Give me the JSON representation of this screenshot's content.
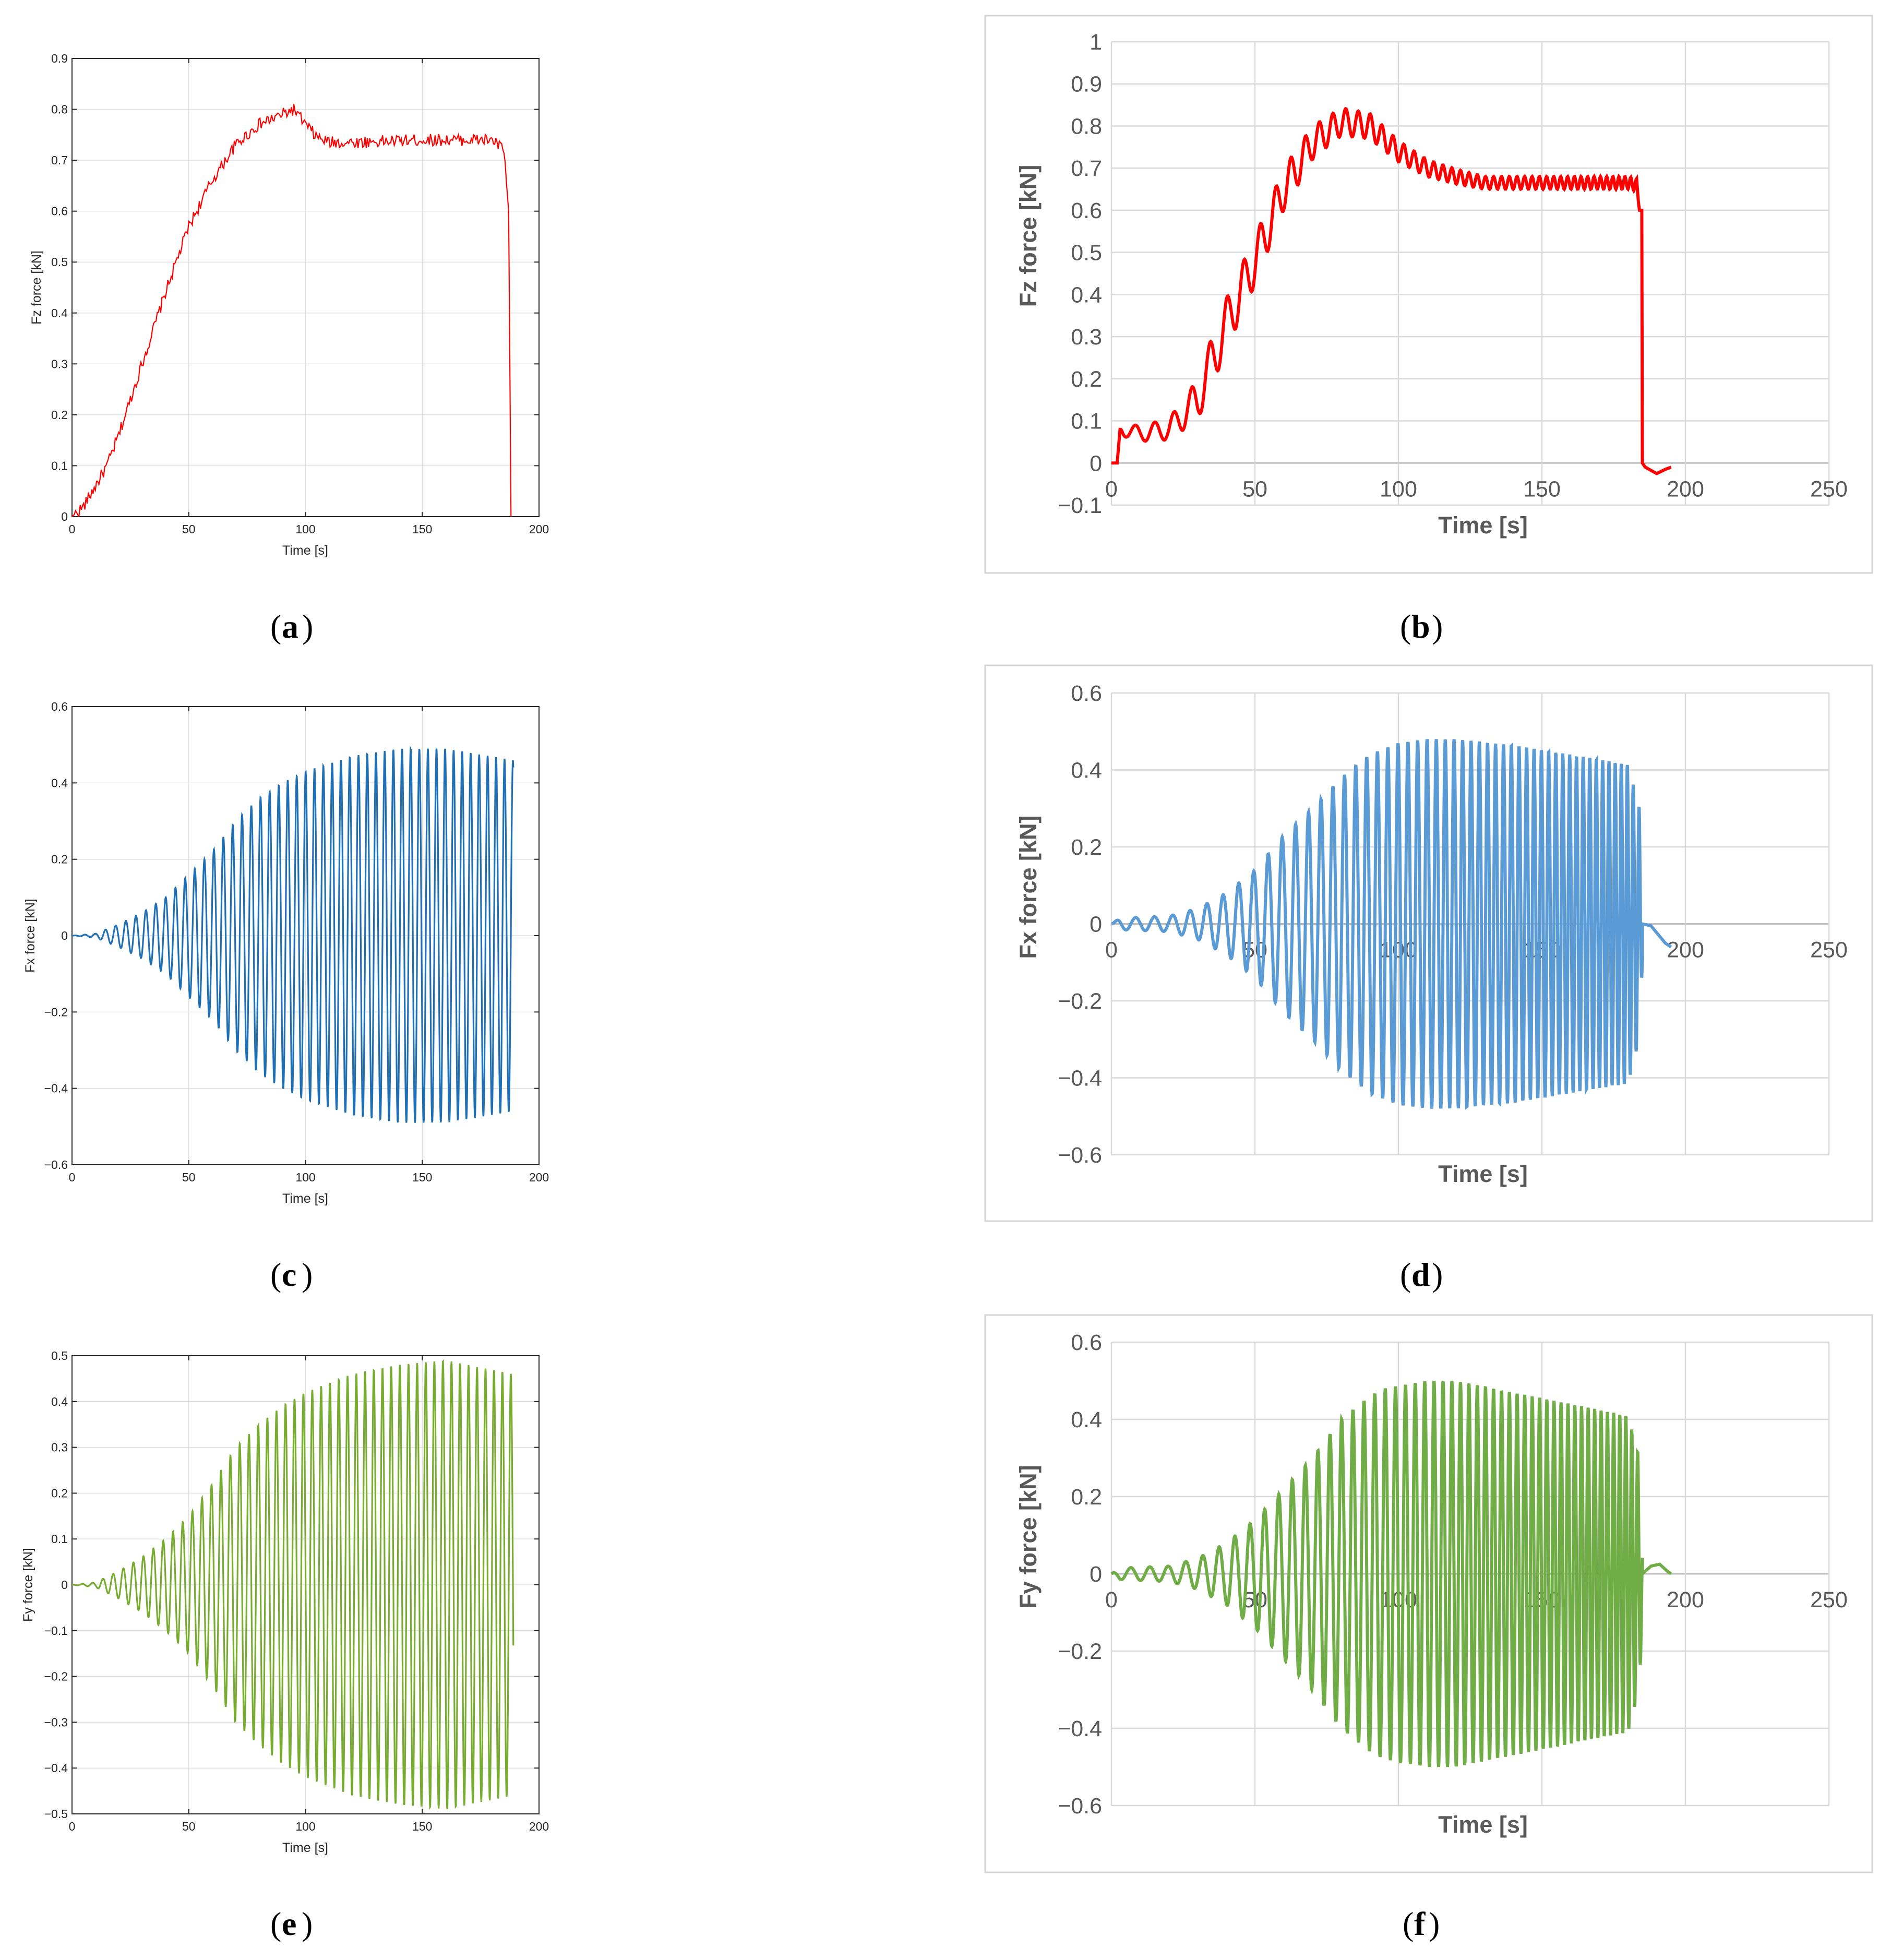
{
  "figure": {
    "colors": {
      "red": "#ff0000",
      "blue": "#1f6fb4",
      "green": "#77ac30",
      "lightblue": "#5b9bd5",
      "lightgreen": "#70ad47"
    },
    "panels": [
      {
        "letter": "a"
      },
      {
        "letter": "b"
      },
      {
        "letter": "c"
      },
      {
        "letter": "d"
      },
      {
        "letter": "e"
      },
      {
        "letter": "f"
      }
    ]
  },
  "chart_data": [
    {
      "id": "a",
      "type": "line",
      "style": "matlab",
      "color": "#ff0000",
      "xlabel": "Time [s]",
      "ylabel": "Fz force [kN]",
      "xlim": [
        0,
        200
      ],
      "ylim": [
        0,
        0.9
      ],
      "xticks": [
        0,
        50,
        100,
        150,
        200
      ],
      "xticklabels": [
        "0",
        "50",
        "100",
        "150",
        "200"
      ],
      "yticks": [
        0,
        0.1,
        0.2,
        0.3,
        0.4,
        0.5,
        0.6,
        0.7,
        0.8,
        0.9
      ],
      "yticklabels": [
        "0",
        "0.1",
        "0.2",
        "0.3",
        "0.4",
        "0.5",
        "0.6",
        "0.7",
        "0.8",
        "0.9"
      ],
      "signal": {
        "kind": "envelope",
        "sample_step": 0.5,
        "noise_amplitude": 0.012,
        "envelope": [
          [
            0,
            0
          ],
          [
            5,
            0.02
          ],
          [
            10,
            0.06
          ],
          [
            15,
            0.1
          ],
          [
            20,
            0.16
          ],
          [
            30,
            0.3
          ],
          [
            40,
            0.44
          ],
          [
            50,
            0.57
          ],
          [
            60,
            0.66
          ],
          [
            70,
            0.73
          ],
          [
            80,
            0.77
          ],
          [
            90,
            0.79
          ],
          [
            95,
            0.8
          ],
          [
            100,
            0.77
          ],
          [
            105,
            0.745
          ],
          [
            110,
            0.735
          ],
          [
            120,
            0.735
          ],
          [
            150,
            0.74
          ],
          [
            180,
            0.74
          ],
          [
            185,
            0.72
          ],
          [
            187,
            0.6
          ],
          [
            188,
            0
          ]
        ]
      }
    },
    {
      "id": "b",
      "type": "line",
      "style": "excel",
      "color": "#ff0000",
      "xlabel": "Time [s]",
      "ylabel": "Fz force [kN]",
      "xlim": [
        0,
        250
      ],
      "ylim": [
        -0.1,
        1
      ],
      "xticks": [
        0,
        50,
        100,
        150,
        200,
        250
      ],
      "xticklabels": [
        "0",
        "50",
        "100",
        "150",
        "200",
        "250"
      ],
      "yticks": [
        -0.1,
        0,
        0.1,
        0.2,
        0.3,
        0.4,
        0.5,
        0.6,
        0.7,
        0.8,
        0.9,
        1
      ],
      "yticklabels": [
        "−0.1",
        "0",
        "0.1",
        "0.2",
        "0.3",
        "0.4",
        "0.5",
        "0.6",
        "0.7",
        "0.8",
        "0.9",
        "1"
      ],
      "signal": {
        "kind": "oscillating_mean",
        "sample_step": 0.2,
        "base": [
          [
            0,
            0
          ],
          [
            2,
            0
          ],
          [
            3,
            0.08
          ],
          [
            10,
            0.07
          ],
          [
            20,
            0.08
          ],
          [
            30,
            0.15
          ],
          [
            40,
            0.33
          ],
          [
            50,
            0.48
          ],
          [
            60,
            0.65
          ],
          [
            70,
            0.76
          ],
          [
            80,
            0.81
          ],
          [
            90,
            0.8
          ],
          [
            100,
            0.74
          ],
          [
            110,
            0.7
          ],
          [
            120,
            0.68
          ],
          [
            130,
            0.665
          ],
          [
            150,
            0.665
          ],
          [
            180,
            0.665
          ],
          [
            183,
            0.66
          ],
          [
            184,
            0.6
          ],
          [
            184.8,
            0.6
          ],
          [
            185,
            0
          ],
          [
            195,
            0
          ]
        ],
        "amplitude": [
          [
            0,
            0
          ],
          [
            3,
            0
          ],
          [
            4,
            0.015
          ],
          [
            20,
            0.025
          ],
          [
            35,
            0.06
          ],
          [
            45,
            0.06
          ],
          [
            60,
            0.05
          ],
          [
            75,
            0.035
          ],
          [
            90,
            0.03
          ],
          [
            110,
            0.02
          ],
          [
            130,
            0.015
          ],
          [
            183,
            0.015
          ],
          [
            184,
            0
          ],
          [
            200,
            0
          ]
        ],
        "period": [
          [
            0,
            7
          ],
          [
            40,
            6
          ],
          [
            80,
            4.5
          ],
          [
            120,
            3
          ],
          [
            183,
            2
          ]
        ],
        "tail": [
          [
            185,
            0
          ],
          [
            186,
            -0.01
          ],
          [
            190,
            -0.025
          ],
          [
            193,
            -0.015
          ],
          [
            195,
            -0.01
          ]
        ]
      }
    },
    {
      "id": "c",
      "type": "line",
      "style": "matlab",
      "color": "#1f6fb4",
      "xlabel": "Time [s]",
      "ylabel": "Fx force [kN]",
      "xlim": [
        0,
        200
      ],
      "ylim": [
        -0.6,
        0.6
      ],
      "xticks": [
        0,
        50,
        100,
        150,
        200
      ],
      "xticklabels": [
        "0",
        "50",
        "100",
        "150",
        "200"
      ],
      "yticks": [
        -0.6,
        -0.4,
        -0.2,
        0,
        0.2,
        0.4,
        0.6
      ],
      "yticklabels": [
        "−0.6",
        "−0.4",
        "−0.2",
        "0",
        "0.2",
        "0.4",
        "0.6"
      ],
      "signal": {
        "kind": "oscillation",
        "t_end": 189,
        "phase": "sin",
        "amplitude": [
          [
            0,
            0
          ],
          [
            10,
            0.005
          ],
          [
            20,
            0.03
          ],
          [
            30,
            0.06
          ],
          [
            40,
            0.1
          ],
          [
            50,
            0.16
          ],
          [
            60,
            0.22
          ],
          [
            70,
            0.3
          ],
          [
            80,
            0.36
          ],
          [
            90,
            0.4
          ],
          [
            100,
            0.43
          ],
          [
            120,
            0.47
          ],
          [
            140,
            0.49
          ],
          [
            160,
            0.49
          ],
          [
            189,
            0.46
          ]
        ],
        "period": [
          [
            0,
            4.5
          ],
          [
            40,
            4.2
          ],
          [
            100,
            3.8
          ],
          [
            189,
            3.6
          ]
        ]
      }
    },
    {
      "id": "d",
      "type": "line",
      "style": "excel",
      "color": "#5b9bd5",
      "xlabel": "Time [s]",
      "ylabel": "Fx force [kN]",
      "xlim": [
        0,
        250
      ],
      "ylim": [
        -0.6,
        0.6
      ],
      "xticks": [
        0,
        50,
        100,
        150,
        200,
        250
      ],
      "xticklabels": [
        "0",
        "50",
        "100",
        "150",
        "200",
        "250"
      ],
      "yticks": [
        -0.6,
        -0.4,
        -0.2,
        0,
        0.2,
        0.4,
        0.6
      ],
      "yticklabels": [
        "−0.6",
        "−0.4",
        "−0.2",
        "0",
        "0.2",
        "0.4",
        "0.6"
      ],
      "signal": {
        "kind": "oscillation",
        "t_end": 185,
        "phase": "sin",
        "amplitude": [
          [
            0,
            0
          ],
          [
            3,
            0.015
          ],
          [
            20,
            0.02
          ],
          [
            30,
            0.04
          ],
          [
            40,
            0.08
          ],
          [
            50,
            0.14
          ],
          [
            60,
            0.23
          ],
          [
            70,
            0.3
          ],
          [
            80,
            0.38
          ],
          [
            90,
            0.44
          ],
          [
            100,
            0.47
          ],
          [
            110,
            0.48
          ],
          [
            120,
            0.48
          ],
          [
            140,
            0.465
          ],
          [
            160,
            0.44
          ],
          [
            180,
            0.415
          ],
          [
            184,
            0.3
          ],
          [
            185,
            0.1
          ]
        ],
        "period": [
          [
            0,
            7
          ],
          [
            40,
            5.5
          ],
          [
            80,
            4
          ],
          [
            120,
            3
          ],
          [
            185,
            2
          ]
        ],
        "tail": [
          [
            185,
            0
          ],
          [
            188,
            -0.005
          ],
          [
            193,
            -0.05
          ],
          [
            195,
            -0.06
          ]
        ]
      }
    },
    {
      "id": "e",
      "type": "line",
      "style": "matlab",
      "color": "#77ac30",
      "xlabel": "Time [s]",
      "ylabel": "Fy force [kN]",
      "xlim": [
        0,
        200
      ],
      "ylim": [
        -0.5,
        0.5
      ],
      "xticks": [
        0,
        50,
        100,
        150,
        200
      ],
      "xticklabels": [
        "0",
        "50",
        "100",
        "150",
        "200"
      ],
      "yticks": [
        -0.5,
        -0.4,
        -0.3,
        -0.2,
        -0.1,
        0,
        0.1,
        0.2,
        0.3,
        0.4,
        0.5
      ],
      "yticklabels": [
        "−0.5",
        "−0.4",
        "−0.3",
        "−0.2",
        "−0.1",
        "0",
        "0.1",
        "0.2",
        "0.3",
        "0.4",
        "0.5"
      ],
      "signal": {
        "kind": "oscillation",
        "t_end": 189,
        "phase": "cos",
        "amplitude": [
          [
            0,
            0
          ],
          [
            10,
            0.005
          ],
          [
            20,
            0.03
          ],
          [
            30,
            0.06
          ],
          [
            40,
            0.1
          ],
          [
            50,
            0.15
          ],
          [
            60,
            0.22
          ],
          [
            70,
            0.3
          ],
          [
            80,
            0.35
          ],
          [
            90,
            0.39
          ],
          [
            100,
            0.42
          ],
          [
            120,
            0.46
          ],
          [
            140,
            0.48
          ],
          [
            160,
            0.49
          ],
          [
            189,
            0.46
          ]
        ],
        "period": [
          [
            0,
            4.5
          ],
          [
            40,
            4.2
          ],
          [
            100,
            3.8
          ],
          [
            189,
            3.6
          ]
        ]
      }
    },
    {
      "id": "f",
      "type": "line",
      "style": "excel",
      "color": "#70ad47",
      "xlabel": "Time [s]",
      "ylabel": "Fy force [kN]",
      "xlim": [
        0,
        250
      ],
      "ylim": [
        -0.6,
        0.6
      ],
      "xticks": [
        0,
        50,
        100,
        150,
        200,
        250
      ],
      "xticklabels": [
        "0",
        "50",
        "100",
        "150",
        "200",
        "250"
      ],
      "yticks": [
        -0.6,
        -0.4,
        -0.2,
        0,
        0.2,
        0.4,
        0.6
      ],
      "yticklabels": [
        "−0.6",
        "−0.4",
        "−0.2",
        "0",
        "0.2",
        "0.4",
        "0.6"
      ],
      "signal": {
        "kind": "oscillation",
        "t_end": 185,
        "phase": "cos",
        "amplitude": [
          [
            0,
            0
          ],
          [
            3,
            0.015
          ],
          [
            20,
            0.02
          ],
          [
            30,
            0.04
          ],
          [
            40,
            0.08
          ],
          [
            50,
            0.14
          ],
          [
            60,
            0.22
          ],
          [
            70,
            0.3
          ],
          [
            80,
            0.4
          ],
          [
            90,
            0.46
          ],
          [
            95,
            0.48
          ],
          [
            110,
            0.5
          ],
          [
            120,
            0.5
          ],
          [
            140,
            0.47
          ],
          [
            160,
            0.44
          ],
          [
            180,
            0.41
          ],
          [
            184,
            0.3
          ],
          [
            185,
            0.1
          ]
        ],
        "period": [
          [
            0,
            7
          ],
          [
            40,
            5.5
          ],
          [
            80,
            4
          ],
          [
            120,
            3
          ],
          [
            185,
            2
          ]
        ],
        "tail": [
          [
            185,
            0
          ],
          [
            188,
            0.02
          ],
          [
            191,
            0.025
          ],
          [
            194,
            0.005
          ],
          [
            195,
            0
          ]
        ]
      }
    }
  ]
}
